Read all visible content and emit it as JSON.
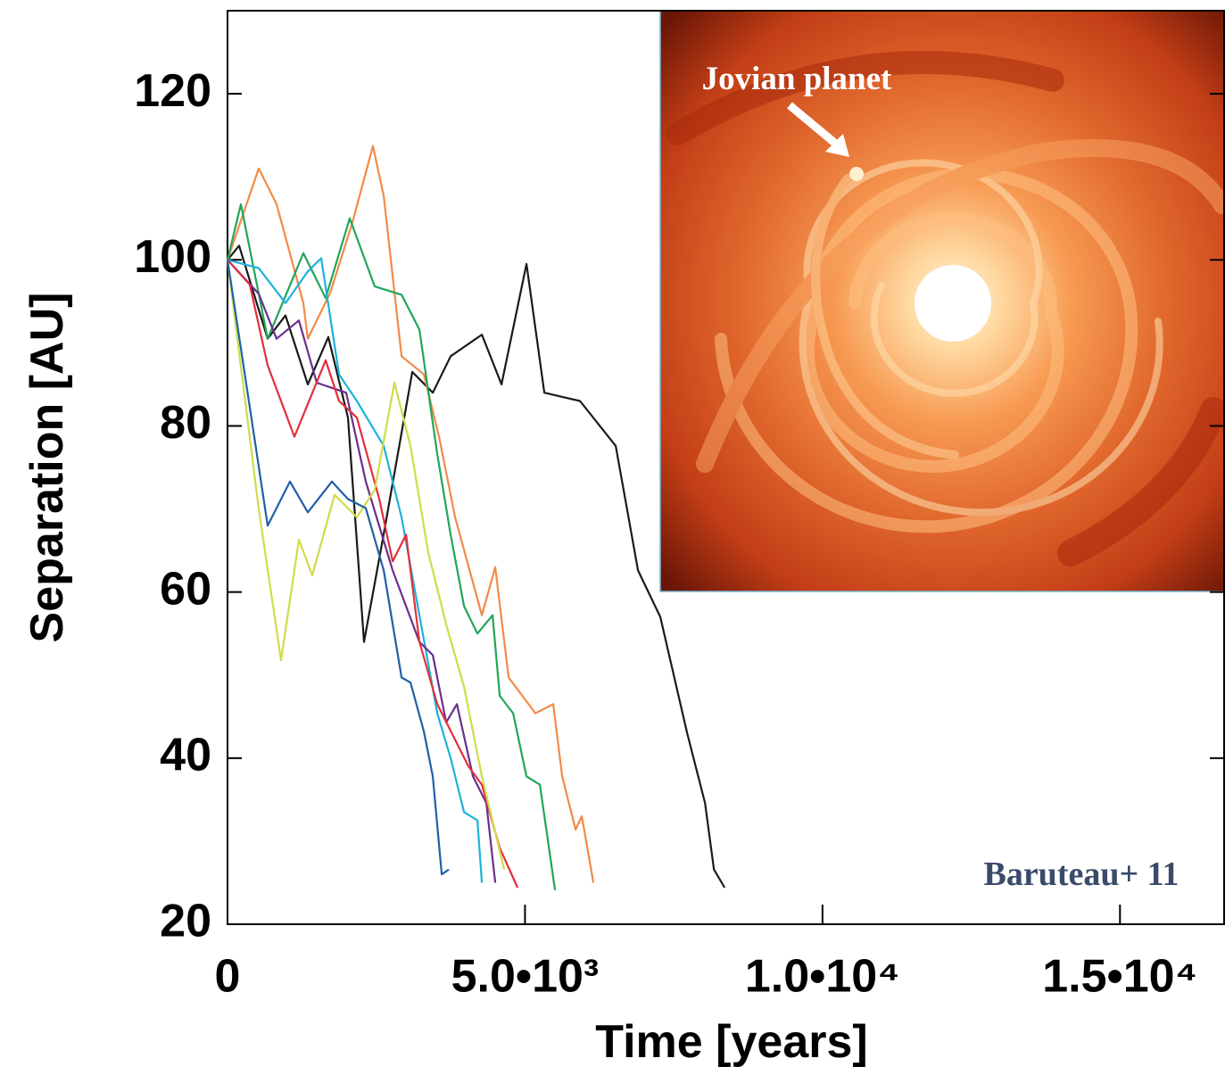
{
  "chart_data": {
    "type": "line",
    "xlabel": "Time [years]",
    "ylabel": "Separation [AU]",
    "xlim": [
      0,
      16750
    ],
    "ylim": [
      20,
      130
    ],
    "xticks": [
      0,
      {
        "value": 5000,
        "label": "5.0•10³"
      },
      {
        "value": 10000,
        "label": "1.0•10⁴"
      },
      {
        "value": 15000,
        "label": "1.5•10⁴"
      }
    ],
    "yticks": [
      20,
      40,
      60,
      80,
      100,
      120
    ],
    "annotations": {
      "inset": "Jovian planet",
      "credit": "Baruteau+ 11"
    },
    "series": [
      {
        "color": "#1a1a1a",
        "x": [
          0,
          195,
          675,
          975,
          1350,
          1695,
          2025,
          2295,
          2625,
          3105,
          3450,
          3750,
          4275,
          4605,
          5025,
          5325,
          5925,
          6525,
          6900,
          7275,
          7725,
          8025,
          8175,
          8355
        ],
        "values": [
          100,
          101.7,
          90.5,
          93.3,
          85,
          90.7,
          81,
          54,
          67,
          86.5,
          84,
          88.4,
          91,
          85,
          99.5,
          84,
          83,
          77.6,
          62.6,
          57,
          43,
          34.6,
          26.6,
          24.4
        ]
      },
      {
        "color": "#f28a48",
        "x": [
          0,
          525,
          825,
          1275,
          1350,
          1725,
          2100,
          2445,
          2625,
          2925,
          3300,
          3555,
          3825,
          4275,
          4500,
          4725,
          5175,
          5475,
          5625,
          5850,
          5955,
          6150
        ],
        "values": [
          100,
          111,
          106.7,
          94.8,
          90.5,
          96,
          104.5,
          113.7,
          107.7,
          88.4,
          86.2,
          78.7,
          69,
          57.2,
          63,
          49.7,
          45.4,
          46.5,
          37.8,
          31.4,
          33,
          25
        ]
      },
      {
        "color": "#22a55a",
        "x": [
          0,
          225,
          675,
          1275,
          1650,
          2055,
          2475,
          2925,
          3225,
          3525,
          3750,
          3975,
          4200,
          4455,
          4575,
          4800,
          5025,
          5250,
          5505
        ],
        "values": [
          100,
          106.7,
          90.5,
          100.8,
          95.4,
          105,
          96.8,
          95.8,
          91.6,
          76.6,
          66.9,
          58.3,
          55,
          57.2,
          47.5,
          45.4,
          37.8,
          36.8,
          24.1
        ]
      },
      {
        "color": "#1cb2dc",
        "x": [
          0,
          525,
          975,
          1350,
          1575,
          1875,
          2175,
          2625,
          2925,
          3225,
          3525,
          3750,
          3975,
          4200,
          4275
        ],
        "values": [
          100,
          99,
          94.8,
          98.6,
          100.2,
          86.2,
          83,
          77.6,
          69,
          57.2,
          45.4,
          40,
          33.5,
          32.5,
          25
        ]
      },
      {
        "color": "#6b2f8e",
        "x": [
          0,
          525,
          825,
          1200,
          1500,
          1995,
          2325,
          2775,
          3225,
          3450,
          3675,
          3855,
          4125,
          4350,
          4500
        ],
        "values": [
          100,
          95.9,
          90.5,
          92.7,
          85.2,
          84,
          73.3,
          62.6,
          54,
          52.4,
          44.3,
          46.5,
          37.8,
          34.6,
          25
        ]
      },
      {
        "color": "#e2303c",
        "x": [
          0,
          375,
          675,
          1125,
          1650,
          1875,
          2175,
          2550,
          2775,
          3000,
          3225,
          3525,
          3825,
          4050,
          4275,
          4575,
          4875
        ],
        "values": [
          100,
          97,
          87.3,
          78.7,
          87.9,
          83,
          81,
          71.2,
          63.7,
          66.9,
          54,
          46.5,
          42.2,
          39,
          36.8,
          29.2,
          24.4
        ]
      },
      {
        "color": "#cfdc48",
        "x": [
          0,
          525,
          900,
          1200,
          1425,
          1800,
          2175,
          2475,
          2805,
          3075,
          3375,
          3675,
          3975,
          4275,
          4650
        ],
        "values": [
          100,
          70,
          51.8,
          66.3,
          62,
          71.7,
          69,
          72.3,
          85.2,
          77.6,
          64.7,
          56.1,
          48.6,
          37.8,
          26.6
        ]
      },
      {
        "color": "#2060a8",
        "x": [
          0,
          675,
          1050,
          1350,
          1755,
          2025,
          2325,
          2625,
          2925,
          3075,
          3300,
          3450,
          3600,
          3720
        ],
        "values": [
          100,
          68,
          73.3,
          69.6,
          73.3,
          71.2,
          70.1,
          62.6,
          49.7,
          49.1,
          43.2,
          37.8,
          26,
          26.6
        ]
      }
    ]
  }
}
